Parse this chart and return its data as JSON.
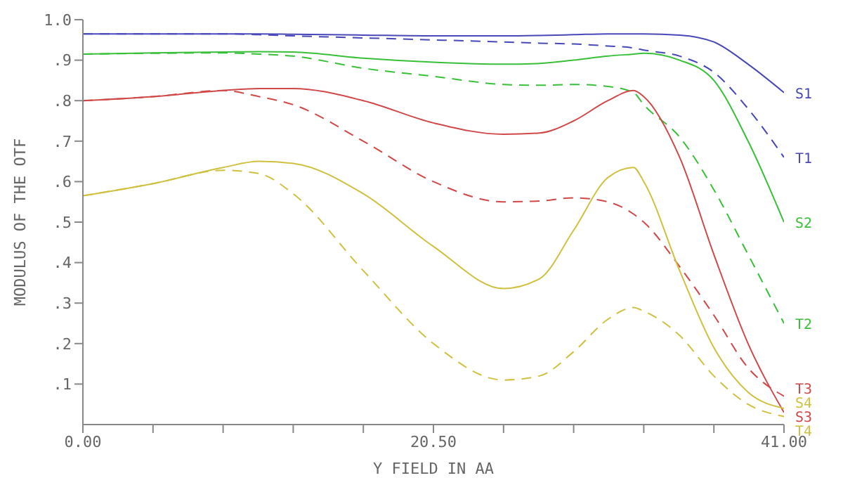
{
  "chart_data": {
    "type": "line",
    "xlabel": "Y FIELD IN  AA",
    "ylabel": "MODULUS OF THE OTF",
    "x": [
      0,
      4.1,
      8.2,
      10.3,
      12.3,
      16.4,
      20.5,
      24.6,
      26.7,
      28.7,
      30.7,
      32.2,
      32.8,
      34.9,
      36.9,
      38.9,
      41
    ],
    "xlim": [
      0,
      41
    ],
    "ylim": [
      0,
      1
    ],
    "xticks": [
      {
        "value": 0,
        "label": "0.00"
      },
      {
        "value": 4.1,
        "label": null
      },
      {
        "value": 8.2,
        "label": null
      },
      {
        "value": 12.3,
        "label": null
      },
      {
        "value": 16.4,
        "label": null
      },
      {
        "value": 20.5,
        "label": "20.50"
      },
      {
        "value": 24.6,
        "label": null
      },
      {
        "value": 28.7,
        "label": null
      },
      {
        "value": 32.8,
        "label": null
      },
      {
        "value": 36.9,
        "label": null
      },
      {
        "value": 41,
        "label": "41.00"
      }
    ],
    "yticks": [
      {
        "value": 0.1,
        "label": ".1"
      },
      {
        "value": 0.2,
        "label": ".2"
      },
      {
        "value": 0.3,
        "label": ".3"
      },
      {
        "value": 0.4,
        "label": ".4"
      },
      {
        "value": 0.5,
        "label": ".5"
      },
      {
        "value": 0.6,
        "label": ".6"
      },
      {
        "value": 0.7,
        "label": ".7"
      },
      {
        "value": 0.8,
        "label": ".8"
      },
      {
        "value": 0.9,
        "label": ".9"
      },
      {
        "value": 1,
        "label": "1.0"
      }
    ],
    "grid": false,
    "legend": false,
    "marker": "none",
    "series": [
      {
        "name": "S1",
        "color": "#4848b8",
        "line_style": "solid",
        "values": [
          0.965,
          0.965,
          0.965,
          0.965,
          0.964,
          0.962,
          0.96,
          0.96,
          0.961,
          0.963,
          0.965,
          0.965,
          0.965,
          0.962,
          0.945,
          0.89,
          0.82
        ]
      },
      {
        "name": "T1",
        "color": "#4848b8",
        "line_style": "dashed",
        "values": [
          0.965,
          0.965,
          0.965,
          0.963,
          0.96,
          0.955,
          0.95,
          0.945,
          0.942,
          0.94,
          0.935,
          0.93,
          0.925,
          0.91,
          0.87,
          0.78,
          0.66
        ]
      },
      {
        "name": "S2",
        "color": "#38c038",
        "line_style": "solid",
        "values": [
          0.915,
          0.918,
          0.92,
          0.921,
          0.92,
          0.905,
          0.895,
          0.89,
          0.892,
          0.9,
          0.91,
          0.915,
          0.917,
          0.9,
          0.85,
          0.7,
          0.5
        ]
      },
      {
        "name": "T2",
        "color": "#38c038",
        "line_style": "dashed",
        "values": [
          0.915,
          0.917,
          0.918,
          0.915,
          0.91,
          0.88,
          0.86,
          0.84,
          0.838,
          0.84,
          0.835,
          0.82,
          0.79,
          0.71,
          0.58,
          0.42,
          0.25
        ]
      },
      {
        "name": "S3",
        "color": "#d04848",
        "line_style": "solid",
        "values": [
          0.8,
          0.81,
          0.825,
          0.83,
          0.83,
          0.8,
          0.745,
          0.717,
          0.72,
          0.75,
          0.8,
          0.825,
          0.81,
          0.66,
          0.42,
          0.2,
          0.03
        ]
      },
      {
        "name": "T3",
        "color": "#d04848",
        "line_style": "dashed",
        "values": [
          0.8,
          0.81,
          0.825,
          0.81,
          0.79,
          0.7,
          0.6,
          0.55,
          0.552,
          0.56,
          0.55,
          0.52,
          0.5,
          0.39,
          0.27,
          0.14,
          0.07
        ]
      },
      {
        "name": "S4",
        "color": "#d0c040",
        "line_style": "solid",
        "values": [
          0.565,
          0.595,
          0.635,
          0.65,
          0.645,
          0.57,
          0.44,
          0.336,
          0.36,
          0.48,
          0.61,
          0.635,
          0.6,
          0.38,
          0.19,
          0.08,
          0.04
        ]
      },
      {
        "name": "T4",
        "color": "#d0c040",
        "line_style": "dashed",
        "values": [
          0.565,
          0.595,
          0.628,
          0.62,
          0.57,
          0.38,
          0.2,
          0.11,
          0.12,
          0.18,
          0.26,
          0.289,
          0.28,
          0.22,
          0.12,
          0.05,
          0.02
        ]
      }
    ]
  }
}
